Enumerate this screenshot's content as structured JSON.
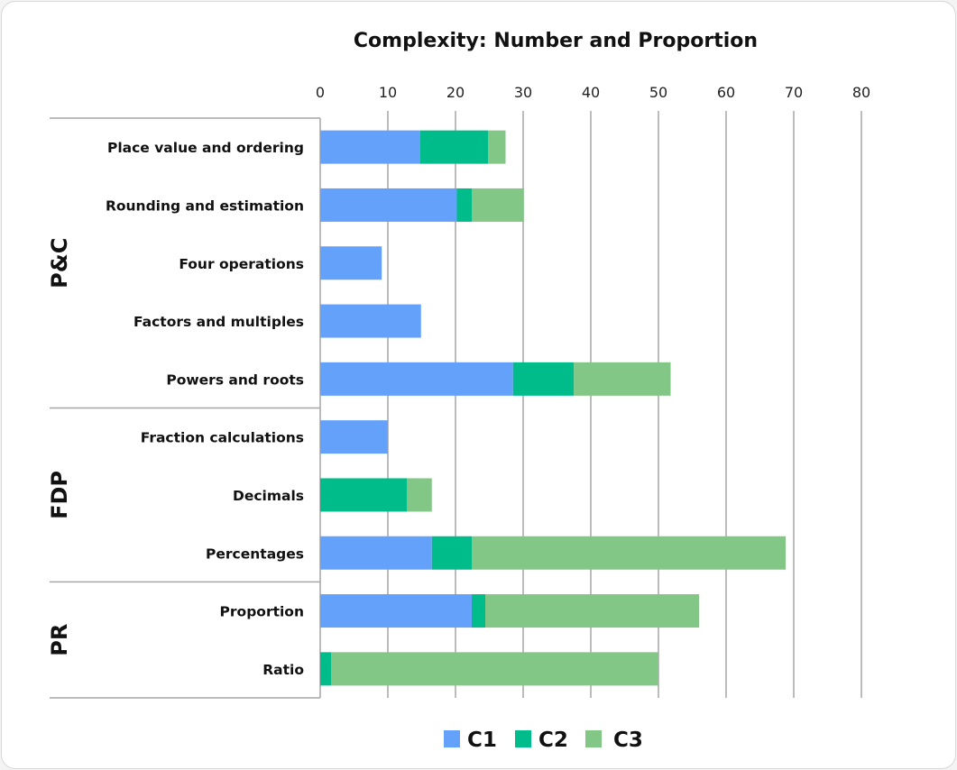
{
  "chart_data": {
    "type": "bar",
    "orientation": "horizontal",
    "stacked": true,
    "title": "Complexity: Number and Proportion",
    "xlabel": "",
    "ylabel": "",
    "xlim": [
      0,
      80
    ],
    "xticks": [
      0,
      10,
      20,
      30,
      40,
      50,
      60,
      70,
      80
    ],
    "xaxis_position": "top",
    "grid": "vertical",
    "legend_position": "bottom",
    "groups": [
      {
        "name": "P&C",
        "categories": [
          "Place value and ordering",
          "Rounding and estimation",
          "Four operations",
          "Factors and multiples",
          "Powers and roots"
        ]
      },
      {
        "name": "FDP",
        "categories": [
          "Fraction calculations",
          "Decimals",
          "Percentages"
        ]
      },
      {
        "name": "PR",
        "categories": [
          "Proportion",
          "Ratio"
        ]
      }
    ],
    "categories": [
      "Place value and ordering",
      "Rounding and estimation",
      "Four operations",
      "Factors and multiples",
      "Powers and roots",
      "Fraction calculations",
      "Decimals",
      "Percentages",
      "Proportion",
      "Ratio"
    ],
    "series": [
      {
        "name": "C1",
        "color": "#64a1fb",
        "values": [
          14.8,
          20.2,
          9.1,
          14.9,
          28.5,
          10.0,
          0,
          16.5,
          22.4,
          0
        ]
      },
      {
        "name": "C2",
        "color": "#00bc8a",
        "values": [
          10.0,
          2.2,
          0,
          0,
          9.0,
          0,
          12.8,
          5.9,
          2.0,
          1.6
        ]
      },
      {
        "name": "C3",
        "color": "#82c785",
        "values": [
          2.6,
          7.7,
          0,
          0,
          14.3,
          0,
          3.7,
          46.4,
          31.6,
          48.4
        ]
      }
    ]
  }
}
